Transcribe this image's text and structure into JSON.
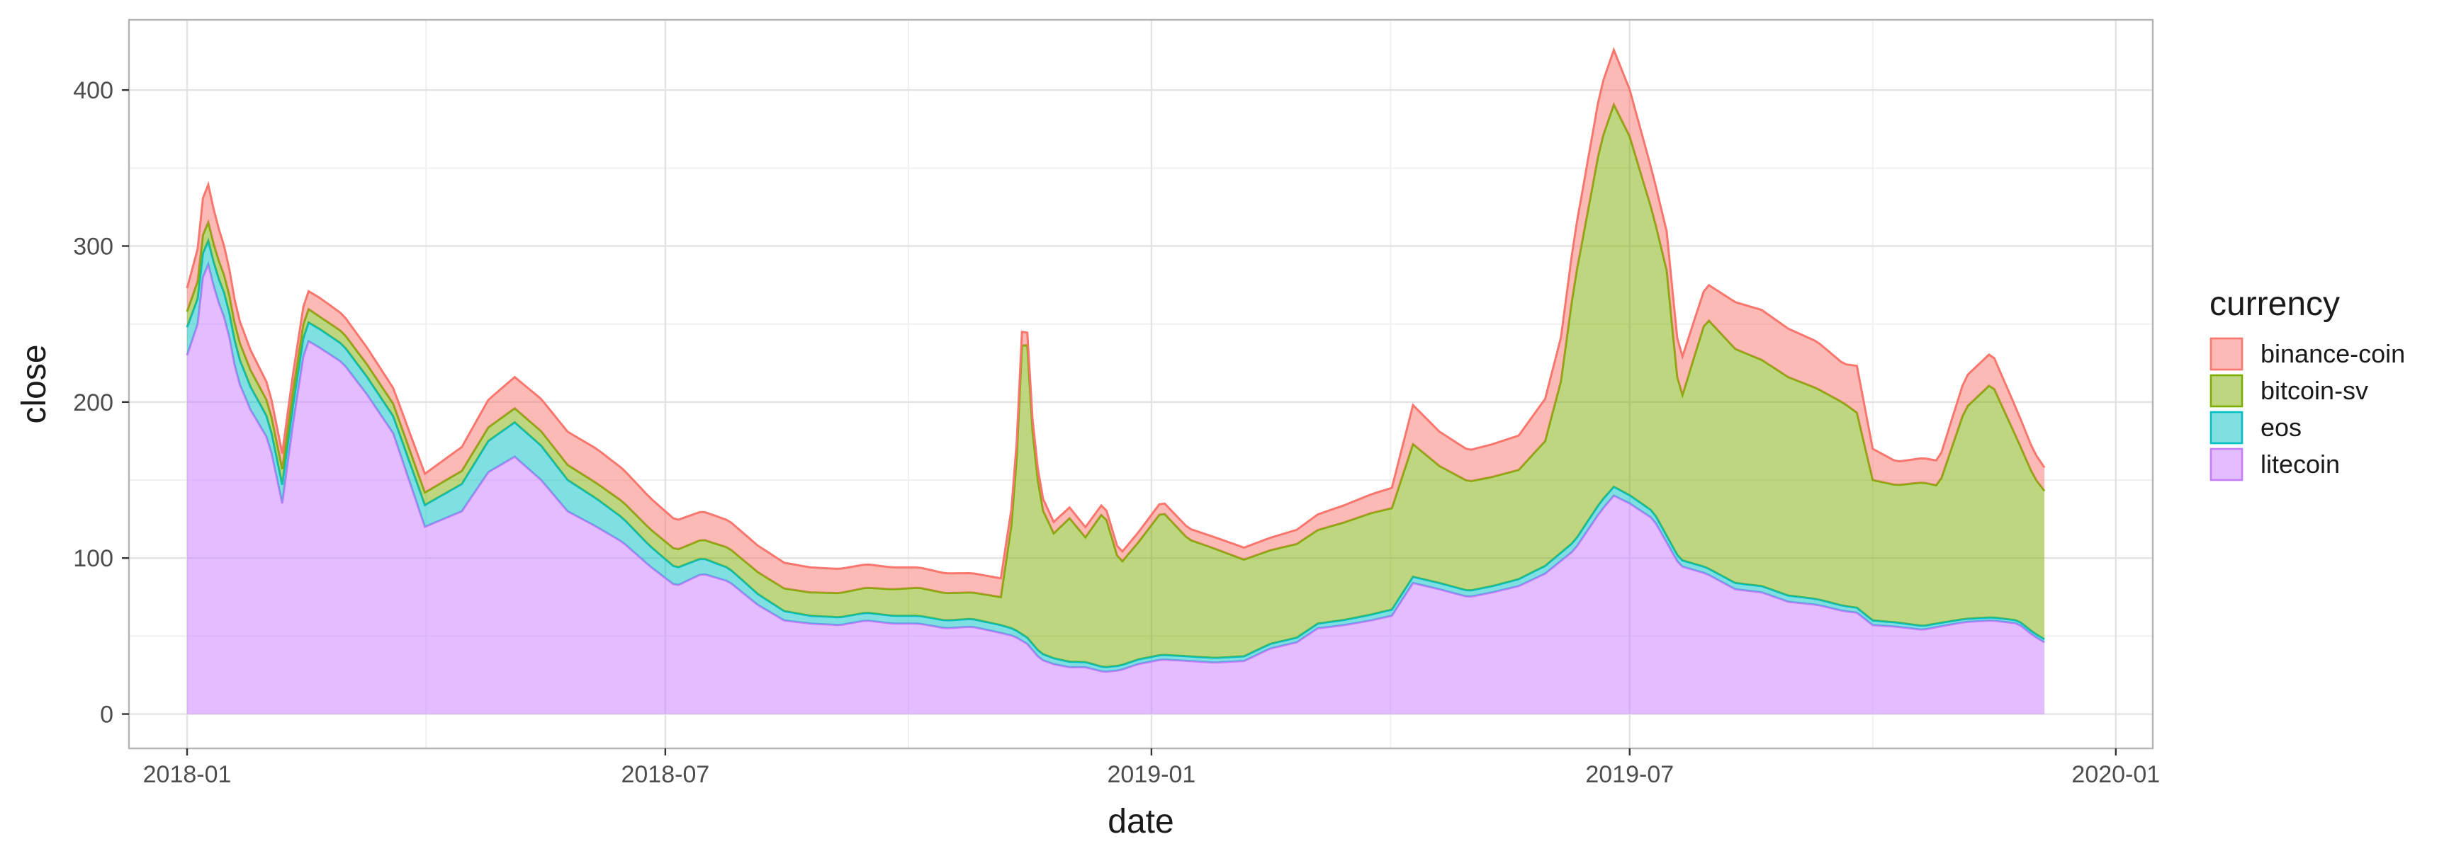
{
  "chart_data": {
    "type": "area",
    "stacked": true,
    "xlabel": "date",
    "ylabel": "close",
    "xlim": [
      "2017-12-10",
      "2020-01-15"
    ],
    "ylim": [
      -22,
      445
    ],
    "x_ticks": [
      {
        "date": "2018-01-01",
        "label": "2018-01"
      },
      {
        "date": "2018-07-01",
        "label": "2018-07"
      },
      {
        "date": "2019-01-01",
        "label": "2019-01"
      },
      {
        "date": "2019-07-01",
        "label": "2019-07"
      },
      {
        "date": "2020-01-01",
        "label": "2020-01"
      }
    ],
    "y_ticks": [
      0,
      100,
      200,
      300,
      400
    ],
    "grid": true,
    "legend": {
      "title": "currency",
      "position": "right"
    },
    "series": [
      {
        "name": "litecoin",
        "color": "#C77CFF",
        "dates": [
          "2018-01-01",
          "2018-01-05",
          "2018-01-08",
          "2018-01-12",
          "2018-01-16",
          "2018-01-20",
          "2018-01-25",
          "2018-02-01",
          "2018-02-06",
          "2018-02-10",
          "2018-02-15",
          "2018-02-20",
          "2018-03-01",
          "2018-03-10",
          "2018-03-20",
          "2018-04-01",
          "2018-04-08",
          "2018-04-15",
          "2018-04-25",
          "2018-05-05",
          "2018-05-15",
          "2018-05-25",
          "2018-06-05",
          "2018-06-15",
          "2018-06-25",
          "2018-07-05",
          "2018-07-15",
          "2018-07-25",
          "2018-08-05",
          "2018-08-15",
          "2018-08-25",
          "2018-09-05",
          "2018-09-15",
          "2018-09-25",
          "2018-10-05",
          "2018-10-15",
          "2018-10-25",
          "2018-11-05",
          "2018-11-10",
          "2018-11-15",
          "2018-11-20",
          "2018-11-25",
          "2018-12-01",
          "2018-12-07",
          "2018-12-14",
          "2018-12-20",
          "2018-12-27",
          "2019-01-05",
          "2019-01-15",
          "2019-01-25",
          "2019-02-05",
          "2019-02-15",
          "2019-02-25",
          "2019-03-05",
          "2019-03-15",
          "2019-03-25",
          "2019-04-02",
          "2019-04-10",
          "2019-04-20",
          "2019-05-01",
          "2019-05-10",
          "2019-05-20",
          "2019-05-30",
          "2019-06-10",
          "2019-06-20",
          "2019-06-25",
          "2019-07-01",
          "2019-07-10",
          "2019-07-20",
          "2019-07-30",
          "2019-08-10",
          "2019-08-20",
          "2019-08-30",
          "2019-09-10",
          "2019-09-20",
          "2019-09-25",
          "2019-10-01",
          "2019-10-10",
          "2019-10-20",
          "2019-10-26",
          "2019-11-05",
          "2019-11-15",
          "2019-11-25",
          "2019-12-01",
          "2019-12-05"
        ],
        "values": [
          230,
          250,
          295,
          268,
          250,
          215,
          195,
          175,
          135,
          185,
          240,
          235,
          225,
          205,
          180,
          120,
          125,
          130,
          155,
          165,
          150,
          130,
          120,
          110,
          95,
          82,
          90,
          85,
          70,
          60,
          58,
          57,
          60,
          58,
          58,
          55,
          56,
          52,
          50,
          45,
          35,
          32,
          30,
          30,
          27,
          28,
          32,
          35,
          34,
          33,
          34,
          42,
          46,
          55,
          57,
          60,
          63,
          84,
          80,
          75,
          78,
          82,
          90,
          105,
          130,
          140,
          135,
          125,
          95,
          90,
          80,
          78,
          72,
          70,
          66,
          65,
          57,
          56,
          54,
          56,
          59,
          60,
          58,
          50,
          46
        ]
      },
      {
        "name": "eos",
        "color": "#00BFC4",
        "dates": [
          "2018-01-01",
          "2018-01-08",
          "2018-01-20",
          "2018-02-06",
          "2018-02-20",
          "2018-03-20",
          "2018-04-01",
          "2018-04-25",
          "2018-05-05",
          "2018-05-15",
          "2018-06-05",
          "2018-06-25",
          "2018-07-15",
          "2018-08-05",
          "2018-08-25",
          "2018-09-15",
          "2018-10-05",
          "2018-11-05",
          "2018-11-15",
          "2018-11-20",
          "2018-12-14",
          "2019-01-15",
          "2019-03-05",
          "2019-04-02",
          "2019-05-10",
          "2019-06-20",
          "2019-07-20",
          "2019-08-30",
          "2019-10-01",
          "2019-11-05",
          "2019-12-05"
        ],
        "values": [
          18,
          15,
          16,
          12,
          12,
          11,
          14,
          20,
          22,
          22,
          18,
          13,
          10,
          7,
          5,
          5,
          5,
          5,
          4,
          4,
          3,
          3,
          3,
          4,
          4,
          6,
          4,
          4,
          3,
          2,
          2
        ]
      },
      {
        "name": "bitcoin-sv",
        "color": "#7CAE00",
        "dates": [
          "2018-01-01",
          "2018-01-08",
          "2018-01-20",
          "2018-02-06",
          "2018-02-20",
          "2018-03-20",
          "2018-04-01",
          "2018-05-05",
          "2018-06-05",
          "2018-06-25",
          "2018-07-15",
          "2018-08-05",
          "2018-08-25",
          "2018-09-15",
          "2018-10-05",
          "2018-10-25",
          "2018-11-05",
          "2018-11-10",
          "2018-11-12",
          "2018-11-14",
          "2018-11-16",
          "2018-11-20",
          "2018-11-25",
          "2018-12-01",
          "2018-12-07",
          "2018-12-14",
          "2018-12-20",
          "2018-12-27",
          "2019-01-05",
          "2019-01-15",
          "2019-01-25",
          "2019-02-05",
          "2019-02-15",
          "2019-03-05",
          "2019-03-25",
          "2019-04-02",
          "2019-04-10",
          "2019-04-20",
          "2019-05-01",
          "2019-05-20",
          "2019-05-30",
          "2019-06-05",
          "2019-06-10",
          "2019-06-20",
          "2019-06-25",
          "2019-07-01",
          "2019-07-10",
          "2019-07-15",
          "2019-07-20",
          "2019-07-30",
          "2019-08-10",
          "2019-08-20",
          "2019-08-30",
          "2019-09-10",
          "2019-09-20",
          "2019-09-25",
          "2019-10-01",
          "2019-10-10",
          "2019-10-20",
          "2019-10-26",
          "2019-11-05",
          "2019-11-15",
          "2019-11-25",
          "2019-12-01",
          "2019-12-05"
        ],
        "values": [
          10,
          12,
          11,
          10,
          8,
          8,
          8,
          9,
          10,
          11,
          12,
          14,
          15,
          16,
          18,
          17,
          18,
          78,
          145,
          225,
          150,
          95,
          80,
          92,
          80,
          100,
          65,
          75,
          92,
          75,
          70,
          62,
          60,
          60,
          65,
          65,
          85,
          75,
          70,
          70,
          80,
          110,
          165,
          230,
          245,
          230,
          190,
          170,
          100,
          160,
          150,
          145,
          140,
          135,
          130,
          125,
          90,
          88,
          92,
          88,
          135,
          150,
          115,
          100,
          95
        ]
      },
      {
        "name": "binance-coin",
        "color": "#F8766D",
        "dates": [
          "2018-01-01",
          "2018-01-08",
          "2018-01-20",
          "2018-02-06",
          "2018-02-20",
          "2018-03-20",
          "2018-04-01",
          "2018-05-05",
          "2018-06-05",
          "2018-06-25",
          "2018-07-15",
          "2018-08-05",
          "2018-08-25",
          "2018-09-15",
          "2018-10-05",
          "2018-11-05",
          "2018-11-15",
          "2018-12-14",
          "2019-01-15",
          "2019-02-15",
          "2019-03-05",
          "2019-03-25",
          "2019-04-02",
          "2019-04-10",
          "2019-04-20",
          "2019-05-01",
          "2019-05-20",
          "2019-05-30",
          "2019-06-05",
          "2019-06-10",
          "2019-06-20",
          "2019-06-25",
          "2019-07-01",
          "2019-07-10",
          "2019-07-20",
          "2019-07-30",
          "2019-08-10",
          "2019-08-20",
          "2019-09-10",
          "2019-09-20",
          "2019-09-25",
          "2019-10-01",
          "2019-10-10",
          "2019-10-26",
          "2019-11-05",
          "2019-11-15",
          "2019-11-25",
          "2019-12-01",
          "2019-12-05"
        ],
        "values": [
          15,
          25,
          14,
          10,
          12,
          10,
          12,
          20,
          22,
          20,
          18,
          17,
          16,
          15,
          13,
          12,
          8,
          6,
          7,
          8,
          10,
          12,
          13,
          25,
          22,
          20,
          22,
          27,
          28,
          30,
          35,
          35,
          30,
          25,
          25,
          22,
          30,
          32,
          30,
          25,
          30,
          20,
          15,
          16,
          20,
          20,
          18,
          16,
          15
        ]
      }
    ]
  }
}
